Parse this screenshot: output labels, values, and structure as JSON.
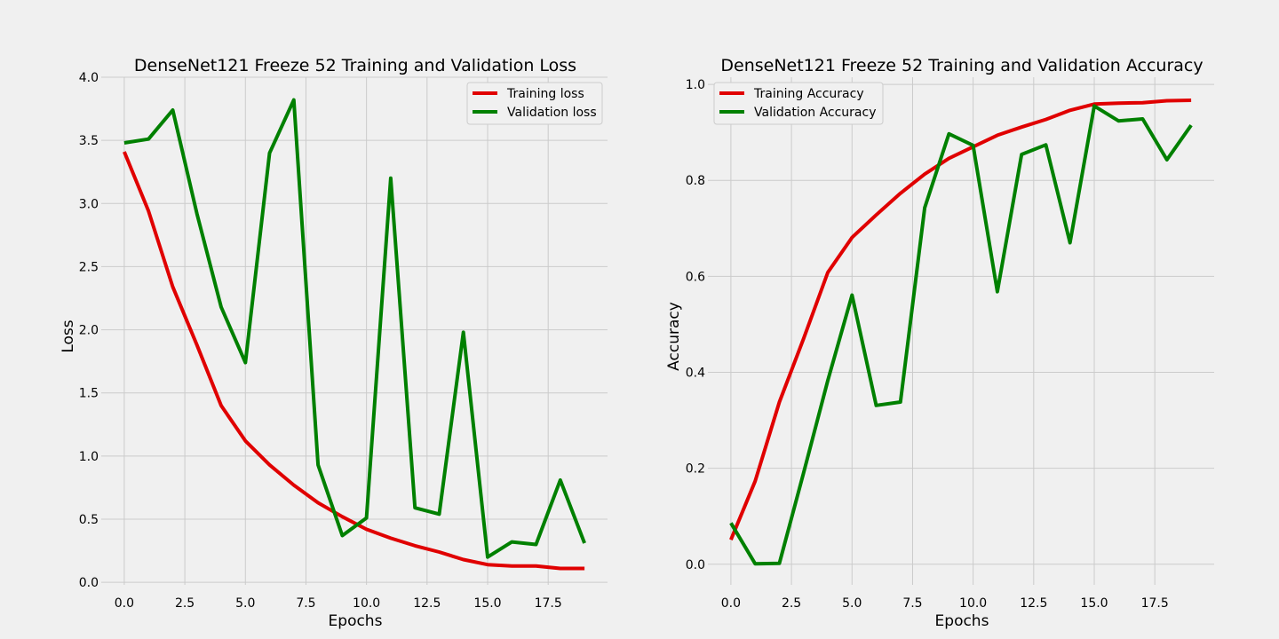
{
  "chart_data": [
    {
      "type": "line",
      "title": "DenseNet121 Freeze 52 Training and Validation Loss",
      "xlabel": "Epochs",
      "ylabel": "Loss",
      "xlim": [
        -0.95,
        19.95
      ],
      "ylim": [
        -0.02,
        4.0
      ],
      "xticks": [
        "0.0",
        "2.5",
        "5.0",
        "7.5",
        "10.0",
        "12.5",
        "15.0",
        "17.5"
      ],
      "xtick_values": [
        0,
        2.5,
        5,
        7.5,
        10,
        12.5,
        15,
        17.5
      ],
      "yticks": [
        "0.0",
        "0.5",
        "1.0",
        "1.5",
        "2.0",
        "2.5",
        "3.0",
        "3.5",
        "4.0"
      ],
      "ytick_values": [
        0,
        0.5,
        1.0,
        1.5,
        2.0,
        2.5,
        3.0,
        3.5,
        4.0
      ],
      "grid": true,
      "legend_position": "top-right",
      "x": [
        0,
        1,
        2,
        3,
        4,
        5,
        6,
        7,
        8,
        9,
        10,
        11,
        12,
        13,
        14,
        15,
        16,
        17,
        18,
        19
      ],
      "series": [
        {
          "name": "Training loss",
          "color": "#e00000",
          "values": [
            3.41,
            2.94,
            2.34,
            1.88,
            1.4,
            1.12,
            0.93,
            0.77,
            0.63,
            0.52,
            0.42,
            0.35,
            0.29,
            0.24,
            0.18,
            0.14,
            0.13,
            0.13,
            0.11,
            0.11
          ]
        },
        {
          "name": "Validation loss",
          "color": "#008000",
          "values": [
            3.48,
            3.51,
            3.74,
            2.92,
            2.18,
            1.74,
            3.4,
            3.82,
            0.93,
            0.37,
            0.51,
            3.2,
            0.59,
            0.54,
            1.98,
            0.2,
            0.32,
            0.3,
            0.81,
            0.31
          ]
        }
      ]
    },
    {
      "type": "line",
      "title": "DenseNet121 Freeze 52 Training and Validation Accuracy",
      "xlabel": "Epochs",
      "ylabel": "Accuracy",
      "xlim": [
        -0.95,
        19.95
      ],
      "ylim": [
        -0.043,
        1.015
      ],
      "xticks": [
        "0.0",
        "2.5",
        "5.0",
        "7.5",
        "10.0",
        "12.5",
        "15.0",
        "17.5"
      ],
      "xtick_values": [
        0,
        2.5,
        5,
        7.5,
        10,
        12.5,
        15,
        17.5
      ],
      "yticks": [
        "0.0",
        "0.2",
        "0.4",
        "0.6",
        "0.8",
        "1.0"
      ],
      "ytick_values": [
        0,
        0.2,
        0.4,
        0.6,
        0.8,
        1.0
      ],
      "grid": true,
      "legend_position": "top-left",
      "x": [
        0,
        1,
        2,
        3,
        4,
        5,
        6,
        7,
        8,
        9,
        10,
        11,
        12,
        13,
        14,
        15,
        16,
        17,
        18,
        19
      ],
      "series": [
        {
          "name": "Training Accuracy",
          "color": "#e00000",
          "values": [
            0.051,
            0.173,
            0.338,
            0.47,
            0.608,
            0.681,
            0.728,
            0.773,
            0.813,
            0.846,
            0.87,
            0.894,
            0.911,
            0.927,
            0.946,
            0.959,
            0.961,
            0.962,
            0.966,
            0.967
          ]
        },
        {
          "name": "Validation Accuracy",
          "color": "#008000",
          "values": [
            0.086,
            0.001,
            0.002,
            0.19,
            0.383,
            0.561,
            0.331,
            0.338,
            0.743,
            0.897,
            0.873,
            0.568,
            0.854,
            0.874,
            0.67,
            0.955,
            0.924,
            0.928,
            0.843,
            0.915
          ]
        }
      ]
    }
  ]
}
